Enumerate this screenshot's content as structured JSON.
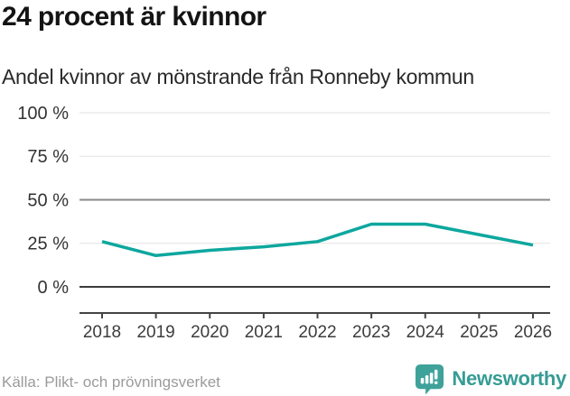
{
  "header": {
    "title": "24 procent är kvinnor",
    "subtitle": "Andel kvinnor av mönstrande från Ronneby kommun"
  },
  "chart_data": {
    "type": "line",
    "title": "24 procent är kvinnor",
    "subtitle": "Andel kvinnor av mönstrande från Ronneby kommun",
    "x": [
      2018,
      2019,
      2020,
      2021,
      2022,
      2023,
      2024,
      2025,
      2026
    ],
    "series": [
      {
        "name": "Andel kvinnor av mönstrande",
        "values": [
          26,
          18,
          21,
          23,
          26,
          36,
          36,
          30,
          24
        ]
      }
    ],
    "unit": "%",
    "ylim": [
      0,
      100
    ],
    "yticks": [
      0,
      25,
      50,
      75,
      100
    ],
    "ytick_suffix": " %",
    "grid": "horizontal",
    "legend": "none",
    "baseline": 0,
    "strong_gridlines": [
      50
    ],
    "line_color": "#0da79e"
  },
  "footer": {
    "source": "Källa: Plikt- och prövningsverket",
    "brand": "Newsworthy",
    "brand_color": "#3ea29b",
    "brand_text_color": "#369c95"
  }
}
